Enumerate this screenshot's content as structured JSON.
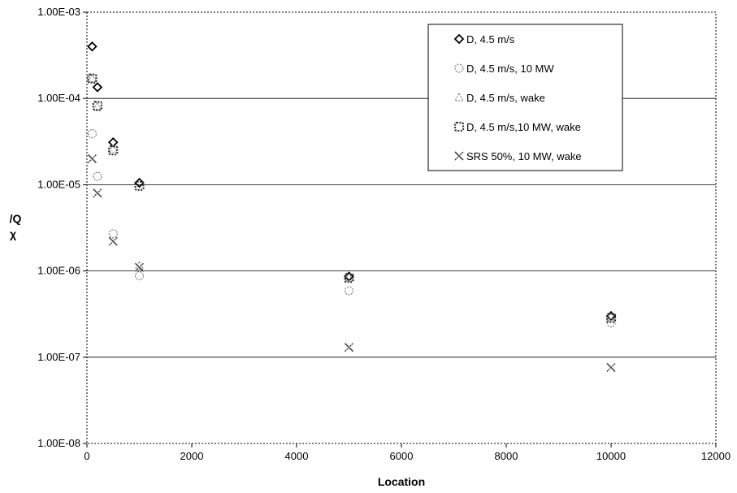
{
  "chart_data": {
    "type": "scatter",
    "xlabel": "Location",
    "ylabel_top": "/Q",
    "ylabel_bottom": "χ",
    "xlim": [
      0,
      12000
    ],
    "ylim": [
      1e-08,
      0.001
    ],
    "yscale": "log",
    "x_ticks": [
      "0",
      "2000",
      "4000",
      "6000",
      "8000",
      "10000",
      "12000"
    ],
    "y_ticks": [
      "1.00E-08",
      "1.00E-07",
      "1.00E-06",
      "1.00E-05",
      "1.00E-04",
      "1.00E-03"
    ],
    "grid": "horizontal",
    "legend_position": "top-right",
    "series": [
      {
        "name": "D, 4.5 m/s",
        "marker": "diamond",
        "points": [
          [
            100,
            0.0004
          ],
          [
            200,
            0.000135
          ],
          [
            500,
            3.1e-05
          ],
          [
            1000,
            1.05e-05
          ],
          [
            5000,
            8.6e-07
          ],
          [
            10000,
            3e-07
          ]
        ]
      },
      {
        "name": "D, 4.5 m/s, 10 MW",
        "marker": "circle",
        "points": [
          [
            100,
            3.9e-05
          ],
          [
            200,
            1.25e-05
          ],
          [
            500,
            2.7e-06
          ],
          [
            1000,
            8.8e-07
          ],
          [
            5000,
            5.9e-07
          ],
          [
            10000,
            2.5e-07
          ]
        ]
      },
      {
        "name": "D, 4.5 m/s, wake",
        "marker": "triangle",
        "points": [
          [
            100,
            0.00017
          ],
          [
            200,
            8e-05
          ],
          [
            500,
            2.6e-05
          ],
          [
            1000,
            1.15e-06
          ],
          [
            5000,
            8.4e-07
          ],
          [
            10000,
            2.9e-07
          ]
        ]
      },
      {
        "name": "D, 4.5 m/s,10 MW, wake",
        "marker": "square-dashed",
        "points": [
          [
            100,
            0.00017
          ],
          [
            200,
            8.2e-05
          ],
          [
            500,
            2.5e-05
          ],
          [
            1000,
            9.7e-06
          ],
          [
            5000,
            8.3e-07
          ],
          [
            10000,
            2.85e-07
          ]
        ]
      },
      {
        "name": "SRS 50%, 10 MW, wake",
        "marker": "x",
        "points": [
          [
            100,
            2e-05
          ],
          [
            200,
            8e-06
          ],
          [
            500,
            2.2e-06
          ],
          [
            1000,
            1.1e-06
          ],
          [
            5000,
            1.3e-07
          ],
          [
            10000,
            7.6e-08
          ]
        ]
      }
    ]
  }
}
